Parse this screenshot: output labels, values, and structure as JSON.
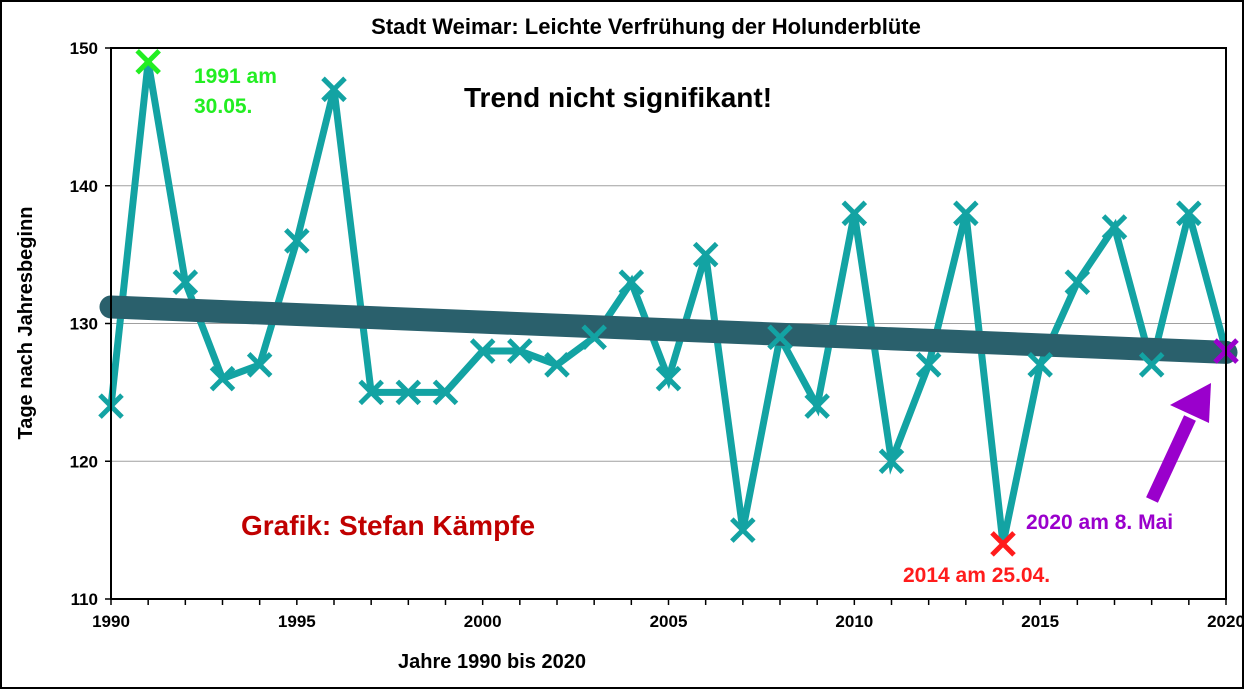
{
  "chart_data": {
    "type": "line",
    "title": "Stadt Weimar:  Leichte Verfrühung der Holunderblüte",
    "xlabel": "Jahre 1990 bis 2020",
    "ylabel": "Tage nach Jahresbeginn",
    "xlim": [
      1990,
      2020
    ],
    "ylim": [
      110,
      150
    ],
    "x_ticks": [
      "1990",
      "1995",
      "2000",
      "2005",
      "2010",
      "2015",
      "2020"
    ],
    "y_ticks": [
      "110",
      "120",
      "130",
      "140",
      "150"
    ],
    "grid": "horizontal",
    "series": [
      {
        "color": "#13A3A3",
        "marker": "x",
        "x": [
          1990,
          1991,
          1992,
          1993,
          1994,
          1995,
          1996,
          1997,
          1998,
          1999,
          2000,
          2001,
          2002,
          2003,
          2004,
          2005,
          2006,
          2007,
          2008,
          2009,
          2010,
          2011,
          2012,
          2013,
          2014,
          2015,
          2016,
          2017,
          2018,
          2019,
          2020
        ],
        "values": [
          124,
          149,
          133,
          126,
          127,
          136,
          147,
          125,
          125,
          125,
          128,
          128,
          127,
          129,
          133,
          126,
          135,
          115,
          129,
          124,
          138,
          120,
          127,
          138,
          114,
          127,
          133,
          137,
          127,
          138,
          128
        ]
      }
    ],
    "trend": {
      "x": [
        1990,
        2020
      ],
      "values": [
        131.2,
        127.9
      ],
      "color": "#2A606C"
    },
    "highlights": [
      {
        "year": 1991,
        "value": 149,
        "color": "#22EE22",
        "label": "1991 am 30.05."
      },
      {
        "year": 2014,
        "value": 114,
        "color": "#FF1C1C",
        "label": "2014 am 25.04."
      },
      {
        "year": 2020,
        "value": 128,
        "color": "#9A00CC",
        "label": "2020 am 8. Mai"
      }
    ],
    "annotations": {
      "trend_note": "Trend nicht signifikant!",
      "credit": "Grafik: Stefan Kämpfe",
      "label_1991_line1": "1991 am",
      "label_1991_line2": "30.05.",
      "label_2014": "2014 am 25.04.",
      "label_2020": "2020 am 8. Mai"
    },
    "colors": {
      "trend_note": "#000000",
      "credit": "#C00000",
      "label_1991": "#22EE22",
      "label_2014": "#FF1C1C",
      "label_2020": "#9A00CC",
      "grid": "#A0A0A0",
      "frame": "#000000"
    }
  }
}
